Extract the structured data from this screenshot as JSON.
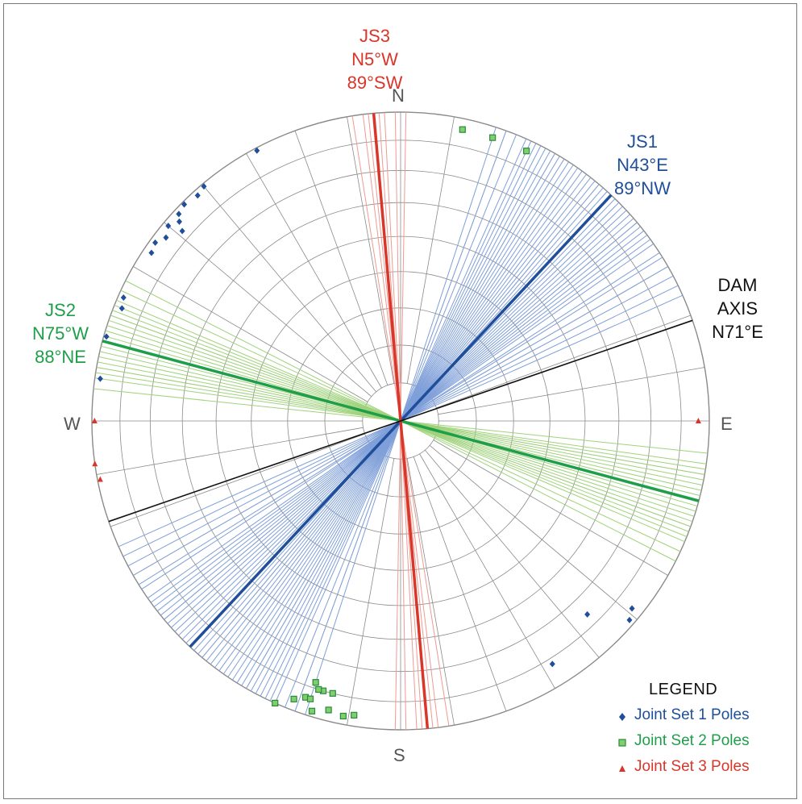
{
  "cardinals": {
    "north": "N",
    "south": "S",
    "east": "E",
    "west": "W"
  },
  "annotations": {
    "js3": {
      "name": "JS3",
      "strike": "N5°W",
      "dip": "89°SW"
    },
    "js1": {
      "name": "JS1",
      "strike": "N43°E",
      "dip": "89°NW"
    },
    "js2": {
      "name": "JS2",
      "strike": "N75°W",
      "dip": "88°NE"
    },
    "dam": {
      "line1": "DAM",
      "line2": "AXIS",
      "strike": "N71°E"
    }
  },
  "legend": {
    "title": "LEGEND",
    "items": [
      {
        "label": "Joint Set 1 Poles",
        "color": "#1f4e9a",
        "symbol": "diamond"
      },
      {
        "label": "Joint Set 2 Poles",
        "color": "#2ea84a",
        "symbol": "square"
      },
      {
        "label": "Joint Set 3 Poles",
        "color": "#d9362a",
        "symbol": "triangle"
      }
    ]
  },
  "colors": {
    "js1": "#1f4e9a",
    "js1_light": "#7f9fd9",
    "js2": "#1f9e4a",
    "js2_light": "#9fd27a",
    "js3": "#d9362a",
    "js3_light": "#ee9a92",
    "dam": "#111111",
    "grid": "#8a8a8a"
  },
  "chart_data": {
    "type": "stereonet",
    "projection": "equal-area lower hemisphere",
    "grid": {
      "small_circle_spacing_deg": 10,
      "radial_spacing_deg": 10
    },
    "mean_planes": [
      {
        "set": "JS1",
        "strike": "N43°E",
        "dip": "89°NW",
        "strike_azimuth_deg": 43
      },
      {
        "set": "JS2",
        "strike": "N75°W",
        "dip": "88°NE",
        "strike_azimuth_deg": 105
      },
      {
        "set": "JS3",
        "strike": "N5°W",
        "dip": "89°SW",
        "strike_azimuth_deg": 175
      },
      {
        "set": "DAM AXIS",
        "strike": "N71°E",
        "strike_azimuth_deg": 71
      }
    ],
    "individual_plane_strikes_deg": {
      "JS1": [
        18,
        20,
        22,
        24,
        25,
        26,
        27,
        28,
        29,
        30,
        31,
        32,
        33,
        34,
        35,
        36,
        37,
        38,
        39,
        40,
        41,
        42,
        44,
        45,
        46,
        47,
        48,
        49,
        50,
        51,
        52,
        53,
        54,
        55,
        57,
        58,
        60,
        62,
        64,
        66
      ],
      "JS2": [
        96,
        98,
        99,
        100,
        101,
        102,
        103,
        104,
        106,
        107,
        108,
        109,
        110,
        111,
        112,
        113,
        115,
        117
      ],
      "JS3": [
        171,
        173,
        174,
        176,
        177,
        179,
        181
      ]
    },
    "poles_deg": {
      "JS1": [
        {
          "trend": 332,
          "plunge": 1
        },
        {
          "trend": 320,
          "plunge": 1
        },
        {
          "trend": 318,
          "plunge": 2
        },
        {
          "trend": 315,
          "plunge": 1
        },
        {
          "trend": 313,
          "plunge": 2
        },
        {
          "trend": 312,
          "plunge": 4
        },
        {
          "trend": 310,
          "plunge": 2
        },
        {
          "trend": 308,
          "plunge": 4
        },
        {
          "trend": 306,
          "plunge": 2
        },
        {
          "trend": 304,
          "plunge": 3
        },
        {
          "trend": 311,
          "plunge": 7
        },
        {
          "trend": 294,
          "plunge": 2
        },
        {
          "trend": 292,
          "plunge": 3
        },
        {
          "trend": 286,
          "plunge": 1
        },
        {
          "trend": 278,
          "plunge": 2
        },
        {
          "trend": 136,
          "plunge": 14
        },
        {
          "trend": 129,
          "plunge": 4
        },
        {
          "trend": 131,
          "plunge": 2
        },
        {
          "trend": 148,
          "plunge": 8
        }
      ],
      "JS2": [
        {
          "trend": 12,
          "plunge": 4
        },
        {
          "trend": 18,
          "plunge": 4
        },
        {
          "trend": 25,
          "plunge": 4
        },
        {
          "trend": 204,
          "plunge": 0
        },
        {
          "trend": 197,
          "plunge": 2
        },
        {
          "trend": 199,
          "plunge": 6
        },
        {
          "trend": 196,
          "plunge": 10
        },
        {
          "trend": 194,
          "plunge": 10
        },
        {
          "trend": 197,
          "plunge": 10
        },
        {
          "trend": 198,
          "plunge": 12
        },
        {
          "trend": 201,
          "plunge": 4
        },
        {
          "trend": 198,
          "plunge": 6
        },
        {
          "trend": 194,
          "plunge": 4
        },
        {
          "trend": 191,
          "plunge": 3
        },
        {
          "trend": 189,
          "plunge": 4
        }
      ],
      "JS3": [
        {
          "trend": 90,
          "plunge": 4
        },
        {
          "trend": 270,
          "plunge": 1
        },
        {
          "trend": 262,
          "plunge": 0
        },
        {
          "trend": 259,
          "plunge": 1
        }
      ]
    }
  }
}
